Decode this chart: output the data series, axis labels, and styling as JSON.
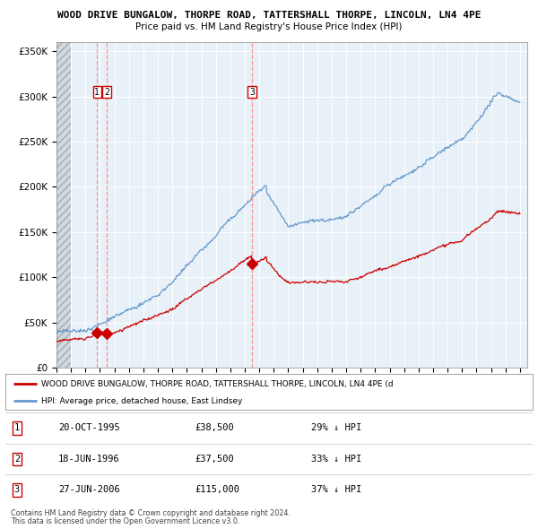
{
  "title": "WOOD DRIVE BUNGALOW, THORPE ROAD, TATTERSHALL THORPE, LINCOLN, LN4 4PE",
  "subtitle": "Price paid vs. HM Land Registry's House Price Index (HPI)",
  "property_label": "WOOD DRIVE BUNGALOW, THORPE ROAD, TATTERSHALL THORPE, LINCOLN, LN4 4PE (d",
  "hpi_label": "HPI: Average price, detached house, East Lindsey",
  "ylabel_ticks": [
    "£0",
    "£50K",
    "£100K",
    "£150K",
    "£200K",
    "£250K",
    "£300K",
    "£350K"
  ],
  "ylim": [
    0,
    360000
  ],
  "xlim_start": 1993.0,
  "xlim_end": 2025.5,
  "sale_points": [
    {
      "year": 1995.8,
      "price": 38500,
      "label": "1"
    },
    {
      "year": 1996.47,
      "price": 37500,
      "label": "2"
    },
    {
      "year": 2006.49,
      "price": 115000,
      "label": "3"
    }
  ],
  "vlines": [
    1995.8,
    1996.47,
    2006.49
  ],
  "table_rows": [
    {
      "num": "1",
      "date": "20-OCT-1995",
      "price": "£38,500",
      "pct": "29% ↓ HPI"
    },
    {
      "num": "2",
      "date": "18-JUN-1996",
      "price": "£37,500",
      "pct": "33% ↓ HPI"
    },
    {
      "num": "3",
      "date": "27-JUN-2006",
      "price": "£115,000",
      "pct": "37% ↓ HPI"
    }
  ],
  "footnote1": "Contains HM Land Registry data © Crown copyright and database right 2024.",
  "footnote2": "This data is licensed under the Open Government Licence v3.0.",
  "hatch_color": "#aaaaaa",
  "property_color": "#cc0000",
  "hpi_color": "#6699cc",
  "chart_bg": "#e8f0f8",
  "hatch_fill_color": "#d0d8e0"
}
